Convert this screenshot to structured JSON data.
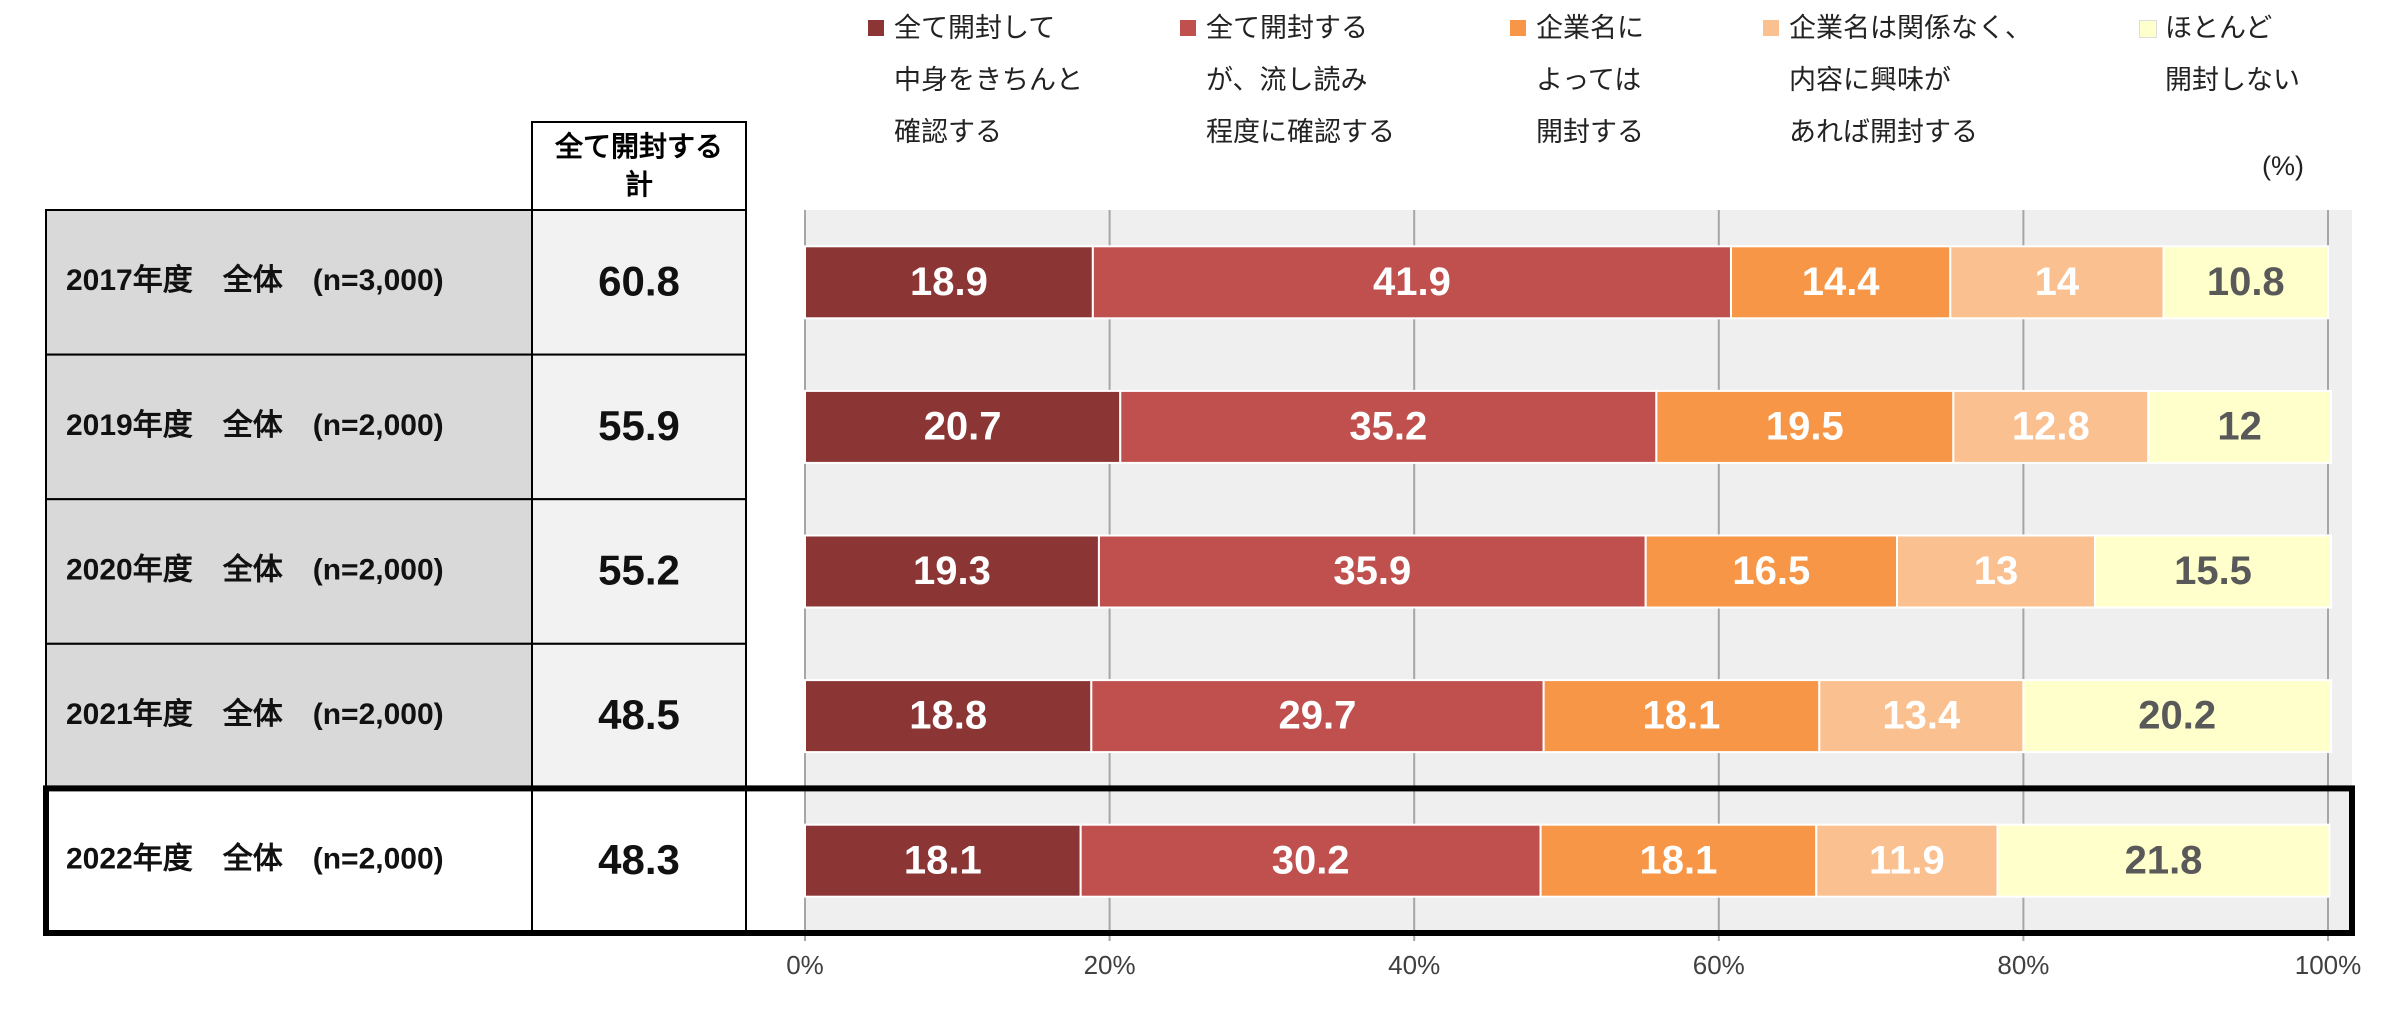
{
  "chart_data": {
    "type": "stacked-bar-horizontal",
    "unit_label": "(%)",
    "categories": [
      "2017年度　全体　(n=3,000)",
      "2019年度　全体　(n=2,000)",
      "2020年度　全体　(n=2,000)",
      "2021年度　全体　(n=2,000)",
      "2022年度　全体　(n=2,000)"
    ],
    "total_column": {
      "header": "全て開封する\n計",
      "values": [
        60.8,
        55.9,
        55.2,
        48.5,
        48.3
      ]
    },
    "series": [
      {
        "name": "全て開封して\n中身をきちんと\n確認する",
        "color": "#8b3535",
        "label_color": "#ffffff",
        "values": [
          18.9,
          20.7,
          19.3,
          18.8,
          18.1
        ]
      },
      {
        "name": "全て開封する\nが、流し読み\n程度に確認する",
        "color": "#c0504d",
        "label_color": "#ffffff",
        "values": [
          41.9,
          35.2,
          35.9,
          29.7,
          30.2
        ]
      },
      {
        "name": "企業名に\nよっては\n開封する",
        "color": "#f79646",
        "label_color": "#ffffff",
        "values": [
          14.4,
          19.5,
          16.5,
          18.1,
          18.1
        ]
      },
      {
        "name": "企業名は関係なく、\n内容に興味が\nあれば開封する",
        "color": "#fac08f",
        "label_color": "#ffffff",
        "values": [
          14.0,
          12.8,
          13.0,
          13.4,
          11.9
        ]
      },
      {
        "name": "ほとんど\n開封しない",
        "color": "#ffffcc",
        "label_color": "#595959",
        "values": [
          10.8,
          12.0,
          15.5,
          20.2,
          21.8
        ]
      }
    ],
    "xlim": [
      0,
      100
    ],
    "xticks": [
      {
        "value": 0,
        "label": "0%"
      },
      {
        "value": 20,
        "label": "20%"
      },
      {
        "value": 40,
        "label": "40%"
      },
      {
        "value": 60,
        "label": "60%"
      },
      {
        "value": 80,
        "label": "80%"
      },
      {
        "value": 100,
        "label": "100%"
      }
    ],
    "grid": true
  }
}
